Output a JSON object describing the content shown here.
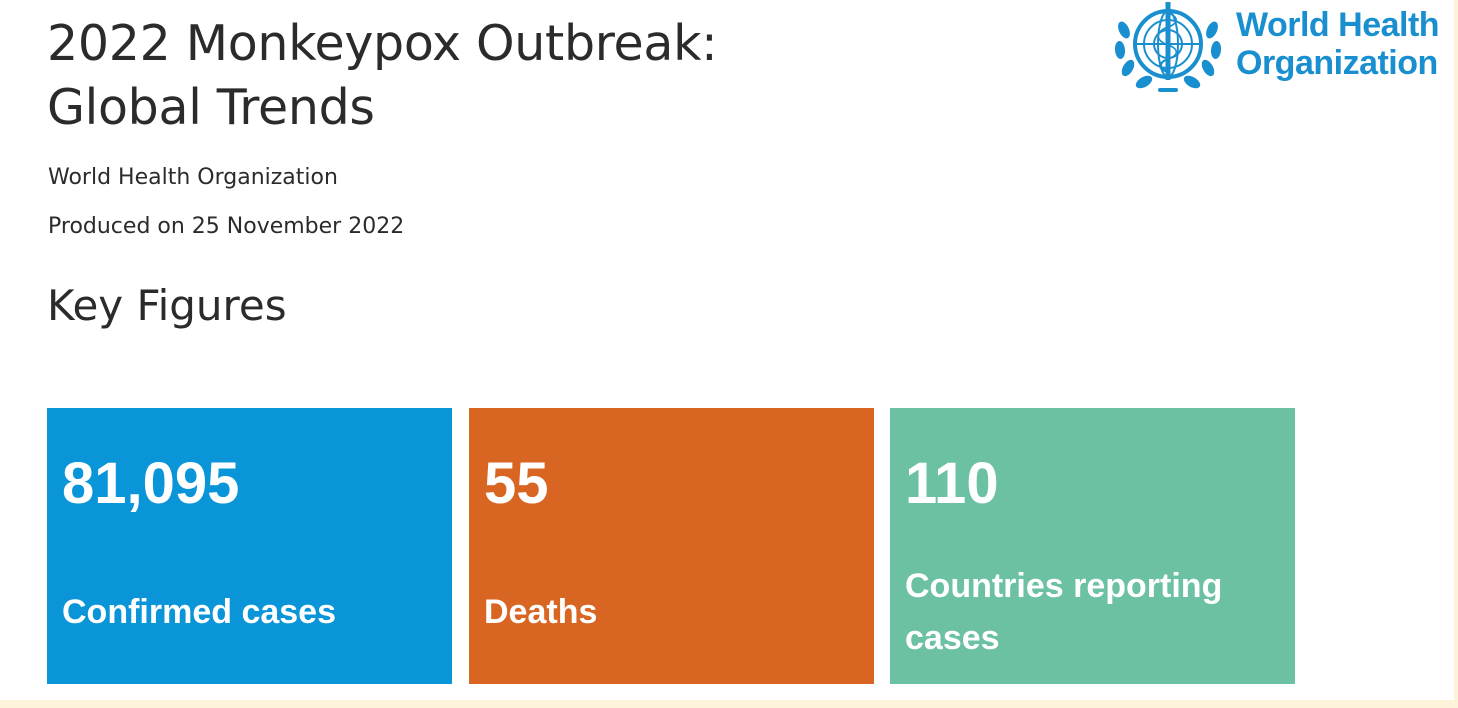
{
  "header": {
    "title_line1": "2022 Monkeypox Outbreak:",
    "title_line2": "Global Trends",
    "organization": "World Health Organization",
    "produced": "Produced on 25 November 2022"
  },
  "logo": {
    "line1": "World Health",
    "line2": "Organization",
    "color": "#1a8fd0"
  },
  "key_figures": {
    "heading": "Key Figures",
    "cards": [
      {
        "value": "81,095",
        "label": "Confirmed cases",
        "color": "#0a95d8"
      },
      {
        "value": "55",
        "label": "Deaths",
        "color": "#d96523"
      },
      {
        "value": "110",
        "label": "Countries reporting cases",
        "color": "#6cc1a2"
      }
    ]
  }
}
